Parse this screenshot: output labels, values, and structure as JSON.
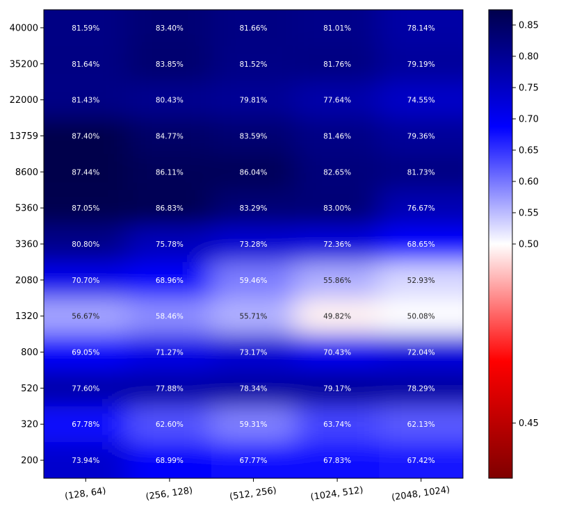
{
  "chart_data": {
    "type": "heatmap",
    "title": "",
    "xlabel": "",
    "ylabel": "",
    "x_categories": [
      "(128, 64)",
      "(256, 128)",
      "(512, 256)",
      "(1024, 512)",
      "(2048, 1024)"
    ],
    "y_categories": [
      "40000",
      "35200",
      "22000",
      "13759",
      "8600",
      "5360",
      "3360",
      "2080",
      "1320",
      "800",
      "520",
      "320",
      "200"
    ],
    "values": [
      [
        81.59,
        83.4,
        81.66,
        81.01,
        78.14
      ],
      [
        81.64,
        83.85,
        81.52,
        81.76,
        79.19
      ],
      [
        81.43,
        80.43,
        79.81,
        77.64,
        74.55
      ],
      [
        87.4,
        84.77,
        83.59,
        81.46,
        79.36
      ],
      [
        87.44,
        86.11,
        86.04,
        82.65,
        81.73
      ],
      [
        87.05,
        86.83,
        83.29,
        83.0,
        76.67
      ],
      [
        80.8,
        75.78,
        73.28,
        72.36,
        68.65
      ],
      [
        70.7,
        68.96,
        59.46,
        55.86,
        52.93
      ],
      [
        56.67,
        58.46,
        55.71,
        49.82,
        50.08
      ],
      [
        69.05,
        71.27,
        73.17,
        70.43,
        72.04
      ],
      [
        77.6,
        77.88,
        78.34,
        79.17,
        78.29
      ],
      [
        67.78,
        62.6,
        59.31,
        63.74,
        62.13
      ],
      [
        73.94,
        68.99,
        67.77,
        67.83,
        67.42
      ]
    ],
    "cell_labels": [
      [
        "81.59%",
        "83.40%",
        "81.66%",
        "81.01%",
        "78.14%"
      ],
      [
        "81.64%",
        "83.85%",
        "81.52%",
        "81.76%",
        "79.19%"
      ],
      [
        "81.43%",
        "80.43%",
        "79.81%",
        "77.64%",
        "74.55%"
      ],
      [
        "87.40%",
        "84.77%",
        "83.59%",
        "81.46%",
        "79.36%"
      ],
      [
        "87.44%",
        "86.11%",
        "86.04%",
        "82.65%",
        "81.73%"
      ],
      [
        "87.05%",
        "86.83%",
        "83.29%",
        "83.00%",
        "76.67%"
      ],
      [
        "80.80%",
        "75.78%",
        "73.28%",
        "72.36%",
        "68.65%"
      ],
      [
        "70.70%",
        "68.96%",
        "59.46%",
        "55.86%",
        "52.93%"
      ],
      [
        "56.67%",
        "58.46%",
        "55.71%",
        "49.82%",
        "50.08%"
      ],
      [
        "69.05%",
        "71.27%",
        "73.17%",
        "70.43%",
        "72.04%"
      ],
      [
        "77.60%",
        "77.88%",
        "78.34%",
        "79.17%",
        "78.29%"
      ],
      [
        "67.78%",
        "62.60%",
        "59.31%",
        "63.74%",
        "62.13%"
      ],
      [
        "73.94%",
        "68.99%",
        "67.77%",
        "67.83%",
        "67.42%"
      ]
    ],
    "colormap": "seismic_r",
    "colorbar": {
      "range": [
        0.4346,
        0.8744
      ],
      "center": 0.5,
      "ticks": [
        0.45,
        0.5,
        0.55,
        0.6,
        0.65,
        0.7,
        0.75,
        0.8,
        0.85
      ],
      "tick_labels": [
        "0.45",
        "0.50",
        "0.55",
        "0.60",
        "0.65",
        "0.70",
        "0.75",
        "0.80",
        "0.85"
      ],
      "colors": {
        "low": "#7f0000",
        "mid_low": "#ff0000",
        "center": "#ffffff",
        "mid_high": "#0000ff",
        "high": "#00004c"
      }
    },
    "interpolation": "smooth",
    "grid": false,
    "legend": "colorbar-right"
  }
}
